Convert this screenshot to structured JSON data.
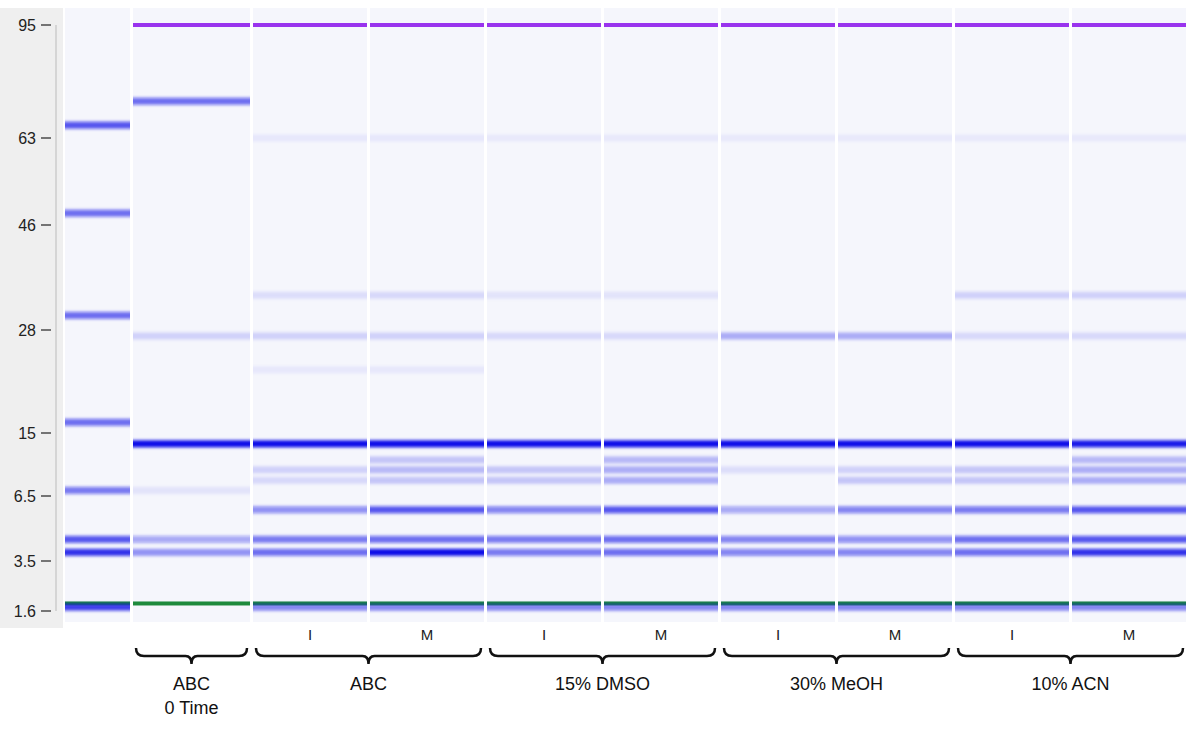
{
  "chart_data": {
    "type": "gel",
    "log": "y",
    "ylim": [
      1.6,
      95
    ],
    "yticks": [
      1.6,
      3.5,
      6.5,
      15,
      28,
      46,
      63,
      95
    ],
    "color": "#1010e8",
    "categories": [
      null,
      null,
      "I",
      "M",
      "I",
      "M",
      "I",
      "M",
      "I",
      "M"
    ],
    "groups": [
      {
        "label": [
          "ABC",
          "0 Time"
        ],
        "lanes": [
          1
        ]
      },
      {
        "label": [
          "ABC"
        ],
        "lanes": [
          2,
          3
        ]
      },
      {
        "label": [
          "15% DMSO"
        ],
        "lanes": [
          4,
          5
        ]
      },
      {
        "label": [
          "30% MeOH"
        ],
        "lanes": [
          6,
          7
        ]
      },
      {
        "label": [
          "10% ACN"
        ],
        "lanes": [
          8,
          9
        ]
      }
    ],
    "lanes": [
      {
        "bands": [
          {
            "kDa": 66,
            "intensity": 0.7
          },
          {
            "kDa": 48,
            "intensity": 0.6
          },
          {
            "kDa": 30,
            "intensity": 0.6
          },
          {
            "kDa": 16,
            "intensity": 0.6
          },
          {
            "kDa": 7,
            "intensity": 0.55
          },
          {
            "kDa": 4.3,
            "intensity": 0.7
          },
          {
            "kDa": 3.8,
            "intensity": 0.85
          },
          {
            "kDa": 1.8,
            "intensity": 1,
            "color": "#1e8a3c"
          },
          {
            "kDa": 1.7,
            "intensity": 0.8
          }
        ]
      },
      {
        "bands": [
          {
            "kDa": 95,
            "intensity": 1,
            "color": "#9933ee"
          },
          {
            "kDa": 72,
            "intensity": 0.6
          },
          {
            "kDa": 27,
            "intensity": 0.15
          },
          {
            "kDa": 13,
            "intensity": 1
          },
          {
            "kDa": 7,
            "intensity": 0.08
          },
          {
            "kDa": 4.3,
            "intensity": 0.35
          },
          {
            "kDa": 3.8,
            "intensity": 0.4
          },
          {
            "kDa": 1.8,
            "intensity": 1,
            "color": "#1e8a3c"
          }
        ]
      },
      {
        "bands": [
          {
            "kDa": 95,
            "intensity": 1,
            "color": "#9933ee"
          },
          {
            "kDa": 63,
            "intensity": 0.06
          },
          {
            "kDa": 33,
            "intensity": 0.1
          },
          {
            "kDa": 27,
            "intensity": 0.15
          },
          {
            "kDa": 22,
            "intensity": 0.06
          },
          {
            "kDa": 13,
            "intensity": 1
          },
          {
            "kDa": 9.2,
            "intensity": 0.15
          },
          {
            "kDa": 8,
            "intensity": 0.12
          },
          {
            "kDa": 5.7,
            "intensity": 0.45
          },
          {
            "kDa": 4.3,
            "intensity": 0.55
          },
          {
            "kDa": 3.8,
            "intensity": 0.6
          },
          {
            "kDa": 1.8,
            "intensity": 1,
            "color": "#1e8a3c"
          },
          {
            "kDa": 1.7,
            "intensity": 0.5
          }
        ]
      },
      {
        "bands": [
          {
            "kDa": 95,
            "intensity": 1,
            "color": "#9933ee"
          },
          {
            "kDa": 63,
            "intensity": 0.06
          },
          {
            "kDa": 33,
            "intensity": 0.12
          },
          {
            "kDa": 27,
            "intensity": 0.15
          },
          {
            "kDa": 22,
            "intensity": 0.06
          },
          {
            "kDa": 13,
            "intensity": 1
          },
          {
            "kDa": 10.5,
            "intensity": 0.2
          },
          {
            "kDa": 9.2,
            "intensity": 0.25
          },
          {
            "kDa": 8,
            "intensity": 0.2
          },
          {
            "kDa": 5.7,
            "intensity": 0.7
          },
          {
            "kDa": 4.3,
            "intensity": 0.6
          },
          {
            "kDa": 3.8,
            "intensity": 1
          },
          {
            "kDa": 1.8,
            "intensity": 1,
            "color": "#1e8a3c"
          },
          {
            "kDa": 1.7,
            "intensity": 0.5
          }
        ]
      },
      {
        "bands": [
          {
            "kDa": 95,
            "intensity": 1,
            "color": "#9933ee"
          },
          {
            "kDa": 63,
            "intensity": 0.05
          },
          {
            "kDa": 33,
            "intensity": 0.08
          },
          {
            "kDa": 27,
            "intensity": 0.12
          },
          {
            "kDa": 13,
            "intensity": 1
          },
          {
            "kDa": 9.2,
            "intensity": 0.2
          },
          {
            "kDa": 8,
            "intensity": 0.2
          },
          {
            "kDa": 5.7,
            "intensity": 0.5
          },
          {
            "kDa": 4.3,
            "intensity": 0.55
          },
          {
            "kDa": 3.8,
            "intensity": 0.55
          },
          {
            "kDa": 1.8,
            "intensity": 1,
            "color": "#1e8a3c"
          },
          {
            "kDa": 1.7,
            "intensity": 0.5
          }
        ]
      },
      {
        "bands": [
          {
            "kDa": 95,
            "intensity": 1,
            "color": "#9933ee"
          },
          {
            "kDa": 63,
            "intensity": 0.05
          },
          {
            "kDa": 33,
            "intensity": 0.08
          },
          {
            "kDa": 27,
            "intensity": 0.12
          },
          {
            "kDa": 13,
            "intensity": 1
          },
          {
            "kDa": 10.5,
            "intensity": 0.25
          },
          {
            "kDa": 9.2,
            "intensity": 0.3
          },
          {
            "kDa": 8,
            "intensity": 0.3
          },
          {
            "kDa": 5.7,
            "intensity": 0.7
          },
          {
            "kDa": 4.3,
            "intensity": 0.6
          },
          {
            "kDa": 3.8,
            "intensity": 0.6
          },
          {
            "kDa": 1.8,
            "intensity": 1,
            "color": "#1e8a3c"
          },
          {
            "kDa": 1.7,
            "intensity": 0.5
          }
        ]
      },
      {
        "bands": [
          {
            "kDa": 95,
            "intensity": 1,
            "color": "#9933ee"
          },
          {
            "kDa": 63,
            "intensity": 0.05
          },
          {
            "kDa": 27,
            "intensity": 0.3
          },
          {
            "kDa": 13,
            "intensity": 1
          },
          {
            "kDa": 9.2,
            "intensity": 0.1
          },
          {
            "kDa": 5.7,
            "intensity": 0.35
          },
          {
            "kDa": 4.3,
            "intensity": 0.5
          },
          {
            "kDa": 3.8,
            "intensity": 0.5
          },
          {
            "kDa": 1.8,
            "intensity": 1,
            "color": "#1e8a3c"
          },
          {
            "kDa": 1.7,
            "intensity": 0.5
          }
        ]
      },
      {
        "bands": [
          {
            "kDa": 95,
            "intensity": 1,
            "color": "#9933ee"
          },
          {
            "kDa": 63,
            "intensity": 0.05
          },
          {
            "kDa": 27,
            "intensity": 0.3
          },
          {
            "kDa": 13,
            "intensity": 1
          },
          {
            "kDa": 9.2,
            "intensity": 0.15
          },
          {
            "kDa": 8,
            "intensity": 0.2
          },
          {
            "kDa": 5.7,
            "intensity": 0.5
          },
          {
            "kDa": 4.3,
            "intensity": 0.45
          },
          {
            "kDa": 3.8,
            "intensity": 0.5
          },
          {
            "kDa": 1.8,
            "intensity": 1,
            "color": "#1e8a3c"
          },
          {
            "kDa": 1.7,
            "intensity": 0.5
          }
        ]
      },
      {
        "bands": [
          {
            "kDa": 95,
            "intensity": 1,
            "color": "#9933ee"
          },
          {
            "kDa": 63,
            "intensity": 0.05
          },
          {
            "kDa": 33,
            "intensity": 0.15
          },
          {
            "kDa": 27,
            "intensity": 0.12
          },
          {
            "kDa": 13,
            "intensity": 1
          },
          {
            "kDa": 9.2,
            "intensity": 0.2
          },
          {
            "kDa": 8,
            "intensity": 0.2
          },
          {
            "kDa": 5.7,
            "intensity": 0.55
          },
          {
            "kDa": 4.3,
            "intensity": 0.6
          },
          {
            "kDa": 3.8,
            "intensity": 0.6
          },
          {
            "kDa": 1.8,
            "intensity": 1,
            "color": "#1e8a3c"
          },
          {
            "kDa": 1.7,
            "intensity": 0.5
          }
        ]
      },
      {
        "bands": [
          {
            "kDa": 95,
            "intensity": 1,
            "color": "#9933ee"
          },
          {
            "kDa": 63,
            "intensity": 0.05
          },
          {
            "kDa": 33,
            "intensity": 0.15
          },
          {
            "kDa": 27,
            "intensity": 0.12
          },
          {
            "kDa": 13,
            "intensity": 0.95
          },
          {
            "kDa": 10.5,
            "intensity": 0.25
          },
          {
            "kDa": 9.2,
            "intensity": 0.3
          },
          {
            "kDa": 8,
            "intensity": 0.3
          },
          {
            "kDa": 5.7,
            "intensity": 0.7
          },
          {
            "kDa": 4.3,
            "intensity": 0.7
          },
          {
            "kDa": 3.8,
            "intensity": 0.85
          },
          {
            "kDa": 1.8,
            "intensity": 1,
            "color": "#1e8a3c"
          },
          {
            "kDa": 1.7,
            "intensity": 0.5
          }
        ]
      }
    ]
  }
}
